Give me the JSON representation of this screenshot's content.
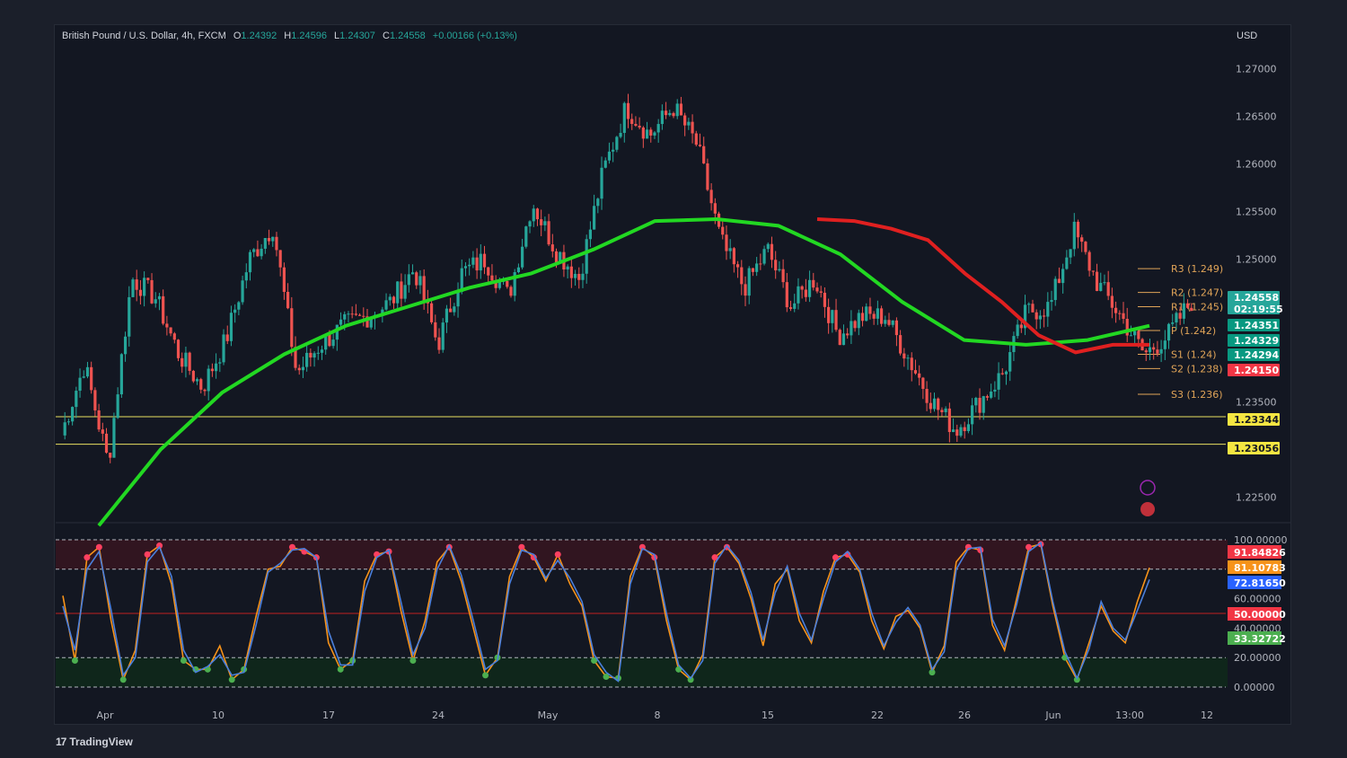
{
  "header": {
    "symbol": "British Pound / U.S. Dollar, 4h, FXCM",
    "o_label": "O",
    "o_value": "1.24392",
    "h_label": "H",
    "h_value": "1.24596",
    "l_label": "L",
    "l_value": "1.24307",
    "c_label": "C",
    "c_value": "1.24558",
    "change": "+0.00166 (+0.13%)"
  },
  "currency": "USD",
  "watermark": "TradingView",
  "colors": {
    "bull": "#26a69a",
    "bear": "#ef5350",
    "green_ma": "#22d822",
    "red_ma": "#e02020",
    "pivot": "#e0a458",
    "support": "#e8e060"
  },
  "chart_data": [
    {
      "type": "candlestick",
      "title": "British Pound / U.S. Dollar, 4h, FXCM",
      "ylim": [
        1.2225,
        1.2725
      ],
      "y_ticks": [
        "1.27000",
        "1.26500",
        "1.26000",
        "1.25500",
        "1.25000",
        "1.23500",
        "1.22500"
      ],
      "x_ticks": [
        "Apr",
        "10",
        "17",
        "24",
        "May",
        "8",
        "15",
        "22",
        "26",
        "Jun",
        "13:00",
        "12"
      ],
      "close_path": [
        [
          "Mar 28",
          1.2315
        ],
        [
          "Apr 1",
          1.239
        ],
        [
          "Apr 2",
          1.2285
        ],
        [
          "Apr 4",
          1.248
        ],
        [
          "Apr 6",
          1.246
        ],
        [
          "Apr 9",
          1.24
        ],
        [
          "Apr 10",
          1.2365
        ],
        [
          "Apr 12",
          1.2415
        ],
        [
          "Apr 14",
          1.25
        ],
        [
          "Apr 15",
          1.2535
        ],
        [
          "Apr 17",
          1.238
        ],
        [
          "Apr 18",
          1.241
        ],
        [
          "Apr 21",
          1.243
        ],
        [
          "Apr 23",
          1.244
        ],
        [
          "Apr 25",
          1.2455
        ],
        [
          "Apr 26",
          1.249
        ],
        [
          "Apr 27",
          1.241
        ],
        [
          "Apr 28",
          1.2485
        ],
        [
          "Apr 29",
          1.25
        ],
        [
          "May 1",
          1.246
        ],
        [
          "May 2",
          1.256
        ],
        [
          "May 3",
          1.251
        ],
        [
          "May 4",
          1.248
        ],
        [
          "May 5",
          1.259
        ],
        [
          "May 8",
          1.266
        ],
        [
          "May 9",
          1.263
        ],
        [
          "May 10",
          1.266
        ],
        [
          "May 11",
          1.262
        ],
        [
          "May 12",
          1.252
        ],
        [
          "May 14",
          1.247
        ],
        [
          "May 15",
          1.251
        ],
        [
          "May 16",
          1.245
        ],
        [
          "May 17",
          1.248
        ],
        [
          "May 18",
          1.242
        ],
        [
          "May 19",
          1.244
        ],
        [
          "May 22",
          1.244
        ],
        [
          "May 23",
          1.2395
        ],
        [
          "May 24",
          1.235
        ],
        [
          "May 25",
          1.232
        ],
        [
          "May 26",
          1.235
        ],
        [
          "May 29",
          1.238
        ],
        [
          "May 30",
          1.2445
        ],
        [
          "May 31",
          1.245
        ],
        [
          "Jun 1",
          1.253
        ],
        [
          "Jun 2",
          1.2475
        ],
        [
          "Jun 5",
          1.244
        ],
        [
          "Jun 6",
          1.24
        ],
        [
          "Jun 7",
          1.242
        ],
        [
          "Jun 8",
          1.2456
        ]
      ],
      "series": [
        {
          "name": "",
          "color": "#22d822",
          "values": [
            1.222,
            1.23,
            1.236,
            1.24,
            1.243,
            1.245,
            1.247,
            1.2485,
            1.251,
            1.254,
            1.2542,
            1.2535,
            1.2505,
            1.2455,
            1.2415,
            1.241,
            1.2415,
            1.243
          ]
        },
        {
          "name": "",
          "color": "#e02020",
          "values": [
            1.2542,
            1.254,
            1.2532,
            1.252,
            1.2485,
            1.2455,
            1.242,
            1.2402,
            1.241,
            1.241
          ]
        }
      ],
      "horizontal_lines": [
        {
          "label": "R3 (1.249)",
          "value": 1.249
        },
        {
          "label": "R2 (1.247)",
          "value": 1.2465
        },
        {
          "label": "R1 (1.245)",
          "value": 1.245
        },
        {
          "label": "P (1.242)",
          "value": 1.2425
        },
        {
          "label": "S1 (1.24)",
          "value": 1.24
        },
        {
          "label": "S2 (1.238)",
          "value": 1.2385
        },
        {
          "label": "S3 (1.236)",
          "value": 1.2358
        },
        {
          "label": "1.23344",
          "value": 1.23344
        },
        {
          "label": "1.23056",
          "value": 1.23056
        }
      ],
      "price_badges": [
        {
          "value": "1.24558",
          "sub": "02:19:55",
          "color": "#26a69a"
        },
        {
          "value": "1.24351",
          "color": "#089981"
        },
        {
          "value": "1.24329",
          "color": "#089981"
        },
        {
          "value": "1.24294",
          "color": "#089981"
        },
        {
          "value": "1.24150",
          "color": "#f23645"
        },
        {
          "value": "1.23344",
          "color": "#f5e642"
        },
        {
          "value": "1.23056",
          "color": "#f5e642"
        }
      ]
    },
    {
      "type": "line",
      "title": "",
      "ylim": [
        0,
        100
      ],
      "y_ticks": [
        "100.00000",
        "80.00000",
        "60.00000",
        "40.00000",
        "20.00000",
        "0.00000"
      ],
      "levels": [
        100,
        80,
        50,
        20,
        0
      ],
      "series": [
        {
          "name": "",
          "color": "#f7931a",
          "values": [
            62,
            18,
            88,
            95,
            45,
            5,
            25,
            90,
            96,
            70,
            18,
            12,
            12,
            28,
            5,
            12,
            48,
            80,
            82,
            95,
            92,
            88,
            30,
            12,
            18,
            72,
            90,
            92,
            52,
            18,
            45,
            85,
            95,
            72,
            40,
            8,
            20,
            75,
            95,
            88,
            72,
            90,
            70,
            55,
            18,
            7,
            6,
            75,
            95,
            88,
            45,
            12,
            5,
            22,
            88,
            95,
            84,
            60,
            28,
            70,
            80,
            45,
            30,
            65,
            88,
            90,
            78,
            45,
            26,
            48,
            52,
            40,
            10,
            28,
            85,
            95,
            93,
            42,
            25,
            60,
            95,
            97,
            55,
            20,
            5,
            30,
            55,
            38,
            30,
            58,
            81
          ]
        },
        {
          "name": "",
          "color": "#4a7fdc",
          "values": [
            55,
            25,
            80,
            92,
            52,
            8,
            20,
            85,
            95,
            75,
            25,
            10,
            14,
            22,
            8,
            10,
            42,
            78,
            84,
            93,
            94,
            88,
            38,
            15,
            15,
            65,
            88,
            93,
            58,
            22,
            40,
            80,
            96,
            76,
            45,
            12,
            18,
            70,
            93,
            90,
            74,
            86,
            74,
            58,
            22,
            10,
            4,
            70,
            94,
            90,
            50,
            15,
            6,
            18,
            84,
            96,
            86,
            64,
            32,
            64,
            82,
            50,
            32,
            60,
            85,
            92,
            80,
            50,
            28,
            44,
            54,
            42,
            12,
            24,
            80,
            94,
            95,
            46,
            28,
            56,
            92,
            98,
            58,
            24,
            6,
            26,
            58,
            40,
            32,
            52,
            73
          ]
        }
      ],
      "readouts": [
        {
          "value": "91.84826",
          "color": "#f23645"
        },
        {
          "value": "81.10783",
          "color": "#f7931a"
        },
        {
          "value": "72.81650",
          "color": "#2962ff"
        },
        {
          "value": "50.00000",
          "color": "#f23645"
        },
        {
          "value": "33.32722",
          "color": "#4caf50"
        }
      ]
    }
  ]
}
